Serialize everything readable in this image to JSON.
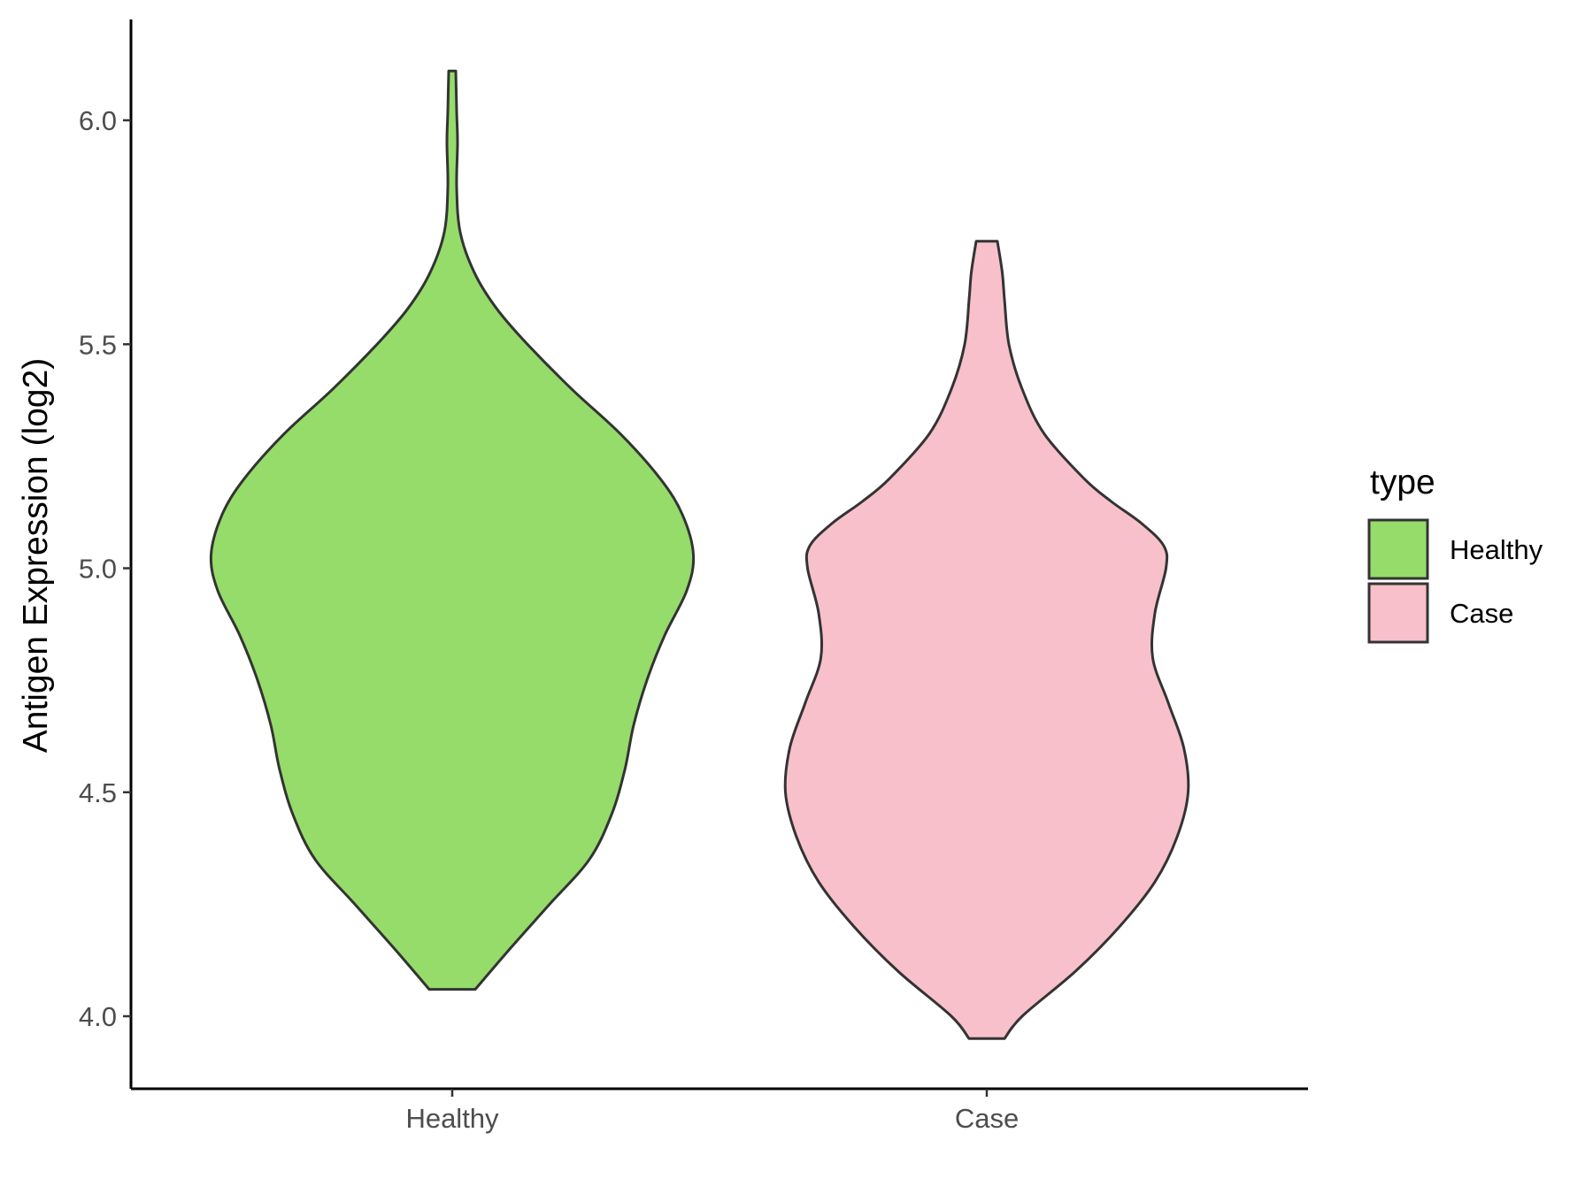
{
  "chart_data": {
    "type": "violin",
    "title": "",
    "xlabel": "",
    "ylabel": "Antigen Expression (log2)",
    "categories": [
      "Healthy",
      "Case"
    ],
    "ylim": [
      3.85,
      6.22
    ],
    "yticks": [
      4.0,
      4.5,
      5.0,
      5.5,
      6.0
    ],
    "ytick_labels": [
      "4.0",
      "4.5",
      "5.0",
      "5.5",
      "6.0"
    ],
    "grid": false,
    "legend": {
      "title": "type",
      "placement": "right",
      "entries": [
        "Healthy",
        "Case"
      ]
    },
    "series": [
      {
        "name": "Healthy",
        "color": "#95dc6a",
        "min": 4.06,
        "max": 6.11,
        "profile": [
          [
            4.06,
            0.052
          ],
          [
            4.15,
            0.13
          ],
          [
            4.25,
            0.22
          ],
          [
            4.35,
            0.31
          ],
          [
            4.45,
            0.36
          ],
          [
            4.55,
            0.39
          ],
          [
            4.65,
            0.41
          ],
          [
            4.75,
            0.44
          ],
          [
            4.85,
            0.48
          ],
          [
            4.95,
            0.53
          ],
          [
            5.03,
            0.545
          ],
          [
            5.12,
            0.52
          ],
          [
            5.2,
            0.47
          ],
          [
            5.3,
            0.38
          ],
          [
            5.4,
            0.27
          ],
          [
            5.5,
            0.17
          ],
          [
            5.58,
            0.1
          ],
          [
            5.66,
            0.05
          ],
          [
            5.75,
            0.018
          ],
          [
            5.85,
            0.01
          ],
          [
            5.95,
            0.012
          ],
          [
            6.02,
            0.01
          ],
          [
            6.11,
            0.008
          ]
        ]
      },
      {
        "name": "Case",
        "color": "#f8c0cb",
        "min": 3.95,
        "max": 5.73,
        "profile": [
          [
            3.95,
            0.04
          ],
          [
            4.0,
            0.08
          ],
          [
            4.1,
            0.2
          ],
          [
            4.2,
            0.3
          ],
          [
            4.3,
            0.38
          ],
          [
            4.4,
            0.43
          ],
          [
            4.5,
            0.455
          ],
          [
            4.6,
            0.445
          ],
          [
            4.7,
            0.41
          ],
          [
            4.8,
            0.375
          ],
          [
            4.9,
            0.38
          ],
          [
            5.0,
            0.405
          ],
          [
            5.05,
            0.4
          ],
          [
            5.1,
            0.35
          ],
          [
            5.15,
            0.28
          ],
          [
            5.2,
            0.22
          ],
          [
            5.3,
            0.13
          ],
          [
            5.4,
            0.08
          ],
          [
            5.5,
            0.05
          ],
          [
            5.6,
            0.04
          ],
          [
            5.66,
            0.035
          ],
          [
            5.73,
            0.024
          ]
        ]
      }
    ]
  },
  "colors": {
    "outline": "#333333",
    "axis": "#000000"
  }
}
